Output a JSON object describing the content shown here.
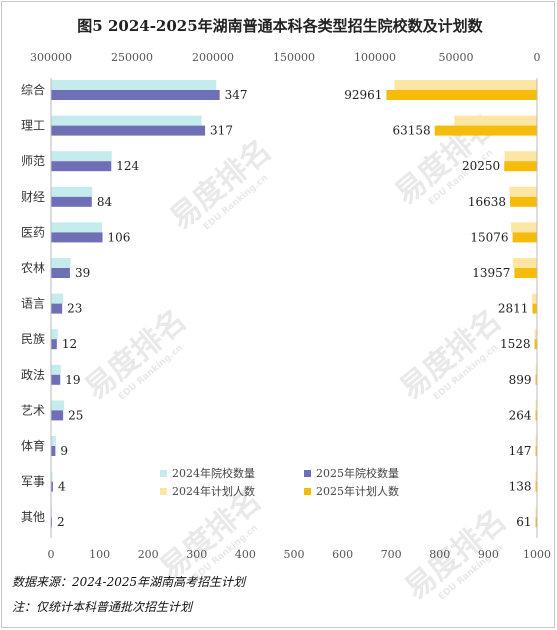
{
  "chart_data": {
    "type": "bar",
    "orientation": "horizontal",
    "title": "图5  2024-2025年湖南普通本科各类型招生院校数及计划数",
    "categories": [
      "综合",
      "理工",
      "师范",
      "财经",
      "医药",
      "农林",
      "语言",
      "民族",
      "政法",
      "艺术",
      "体育",
      "军事",
      "其他"
    ],
    "left_panel": {
      "axis_ticks": [
        "0",
        "100",
        "200",
        "300",
        "400",
        "500",
        "600",
        "700",
        "800",
        "900",
        "1000"
      ],
      "xlim": [
        0,
        1000
      ],
      "series": [
        {
          "name": "2024年院校数量",
          "color": "#c5ecec",
          "values": [
            340,
            310,
            125,
            85,
            105,
            40,
            25,
            14,
            20,
            27,
            10,
            3,
            2
          ],
          "show_labels": false
        },
        {
          "name": "2025年院校数量",
          "color": "#6f6fb5",
          "values": [
            347,
            317,
            124,
            84,
            106,
            39,
            23,
            12,
            19,
            25,
            9,
            4,
            2
          ],
          "show_labels": true
        }
      ]
    },
    "right_panel": {
      "axis_ticks": [
        "300000",
        "250000",
        "200000",
        "150000",
        "100000",
        "50000",
        "0"
      ],
      "xlim": [
        0,
        300000
      ],
      "reversed": true,
      "series": [
        {
          "name": "2024年计划人数",
          "color": "#fde6a4",
          "values": [
            88000,
            51000,
            20000,
            17000,
            16000,
            15000,
            3000,
            1500,
            900,
            250,
            150,
            130,
            60
          ],
          "show_labels": false
        },
        {
          "name": "2025年计划人数",
          "color": "#f6bc0c",
          "values": [
            92961,
            63158,
            20250,
            16638,
            15076,
            13957,
            2811,
            1528,
            899,
            264,
            147,
            138,
            61
          ],
          "show_labels": true
        }
      ]
    },
    "legend": {
      "position": "bottom-center",
      "entries": [
        "2024年院校数量",
        "2025年院校数量",
        "2024年计划人数",
        "2025年计划人数"
      ]
    },
    "grid": false
  },
  "notes": {
    "source": "数据来源：2024-2025年湖南高考招生计划",
    "remark": "注：仅统计本科普通批次招生计划"
  },
  "watermark": {
    "brand": "易度排名",
    "sub": "EDU Ranking.cn"
  }
}
